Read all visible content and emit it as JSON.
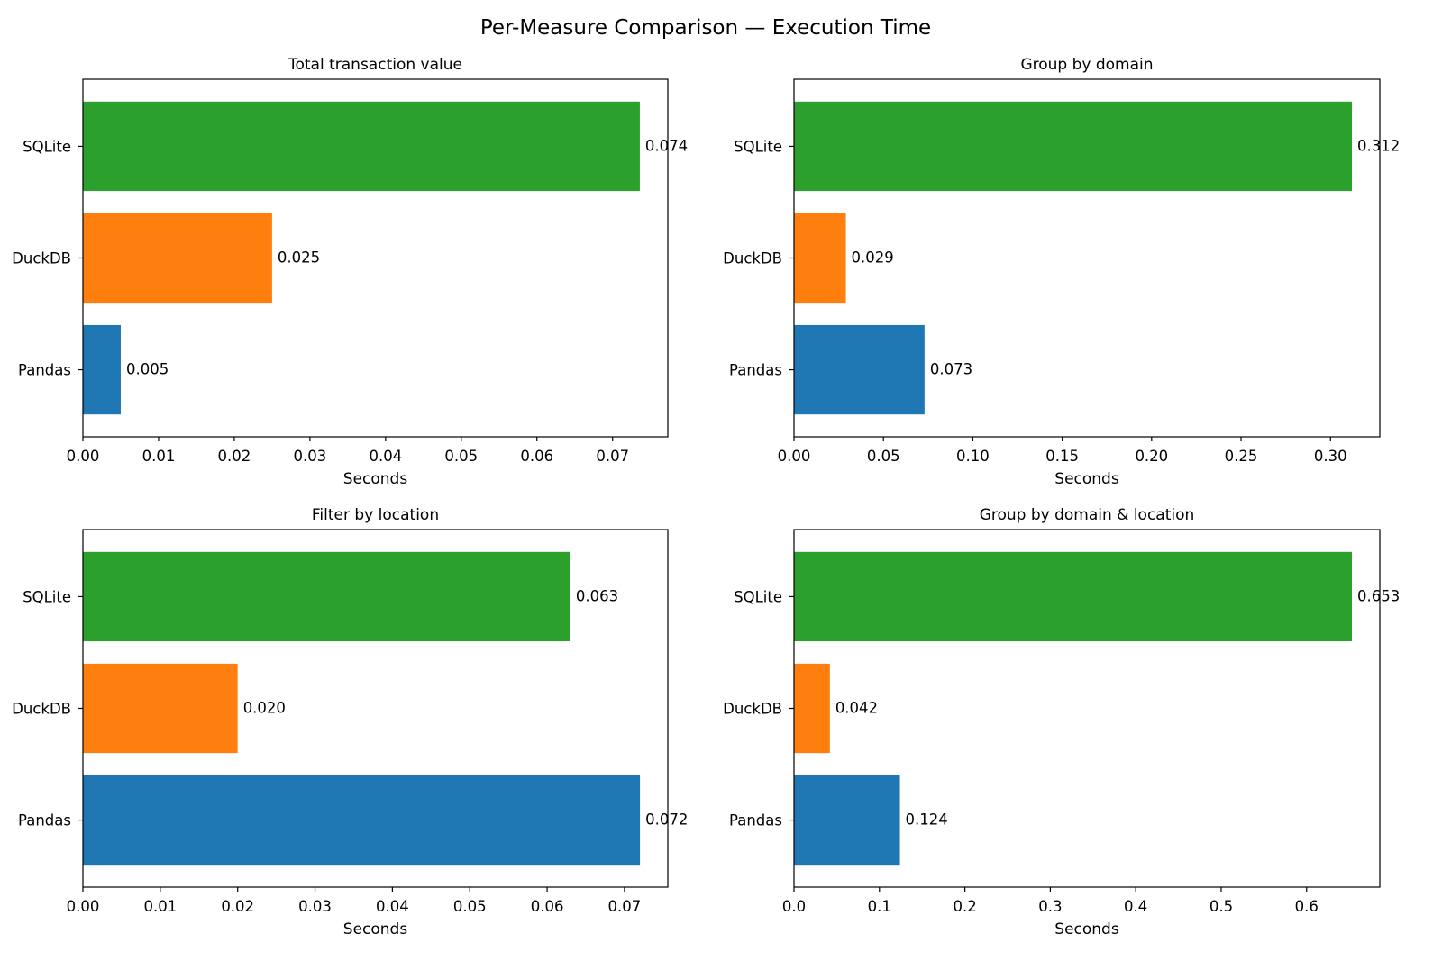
{
  "chart_data": {
    "type": "bar",
    "orientation": "horizontal",
    "title": "Per-Measure Comparison — Execution Time",
    "categories": [
      "Pandas",
      "DuckDB",
      "SQLite"
    ],
    "colors": {
      "Pandas": "#1f77b4",
      "DuckDB": "#ff7f0e",
      "SQLite": "#2ca02c"
    },
    "subplots": [
      {
        "title": "Total transaction value",
        "xlabel": "Seconds",
        "xlim": [
          0,
          0.0773
        ],
        "xticks": [
          0.0,
          0.01,
          0.02,
          0.03,
          0.04,
          0.05,
          0.06,
          0.07
        ],
        "xtick_labels": [
          "0.00",
          "0.01",
          "0.02",
          "0.03",
          "0.04",
          "0.05",
          "0.06",
          "0.07"
        ],
        "values": {
          "Pandas": 0.005,
          "DuckDB": 0.025,
          "SQLite": 0.0736
        },
        "value_labels": {
          "Pandas": "0.005",
          "DuckDB": "0.025",
          "SQLite": "0.074"
        }
      },
      {
        "title": "Group by domain",
        "xlabel": "Seconds",
        "xlim": [
          0,
          0.3276
        ],
        "xticks": [
          0.0,
          0.05,
          0.1,
          0.15,
          0.2,
          0.25,
          0.3
        ],
        "xtick_labels": [
          "0.00",
          "0.05",
          "0.10",
          "0.15",
          "0.20",
          "0.25",
          "0.30"
        ],
        "values": {
          "Pandas": 0.073,
          "DuckDB": 0.029,
          "SQLite": 0.312
        },
        "value_labels": {
          "Pandas": "0.073",
          "DuckDB": "0.029",
          "SQLite": "0.312"
        }
      },
      {
        "title": "Filter by location",
        "xlabel": "Seconds",
        "xlim": [
          0,
          0.0756
        ],
        "xticks": [
          0.0,
          0.01,
          0.02,
          0.03,
          0.04,
          0.05,
          0.06,
          0.07
        ],
        "xtick_labels": [
          "0.00",
          "0.01",
          "0.02",
          "0.03",
          "0.04",
          "0.05",
          "0.06",
          "0.07"
        ],
        "values": {
          "Pandas": 0.072,
          "DuckDB": 0.02,
          "SQLite": 0.063
        },
        "value_labels": {
          "Pandas": "0.072",
          "DuckDB": "0.020",
          "SQLite": "0.063"
        }
      },
      {
        "title": "Group by domain & location",
        "xlabel": "Seconds",
        "xlim": [
          0,
          0.6857
        ],
        "xticks": [
          0.0,
          0.1,
          0.2,
          0.3,
          0.4,
          0.5,
          0.6
        ],
        "xtick_labels": [
          "0.0",
          "0.1",
          "0.2",
          "0.3",
          "0.4",
          "0.5",
          "0.6"
        ],
        "values": {
          "Pandas": 0.124,
          "DuckDB": 0.042,
          "SQLite": 0.653
        },
        "value_labels": {
          "Pandas": "0.124",
          "DuckDB": "0.042",
          "SQLite": "0.653"
        }
      }
    ],
    "grid": false,
    "legend": "none"
  }
}
